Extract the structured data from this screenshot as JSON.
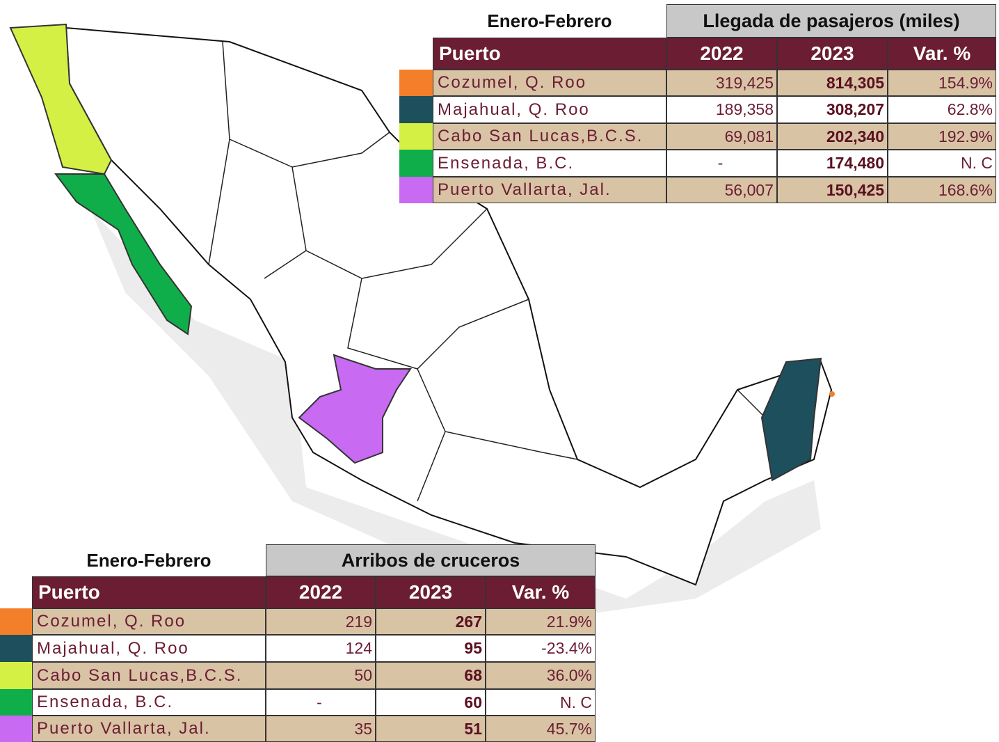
{
  "tables": [
    {
      "period": "Enero-Febrero",
      "title": "Llegada de pasajeros (miles)",
      "header": [
        "Puerto",
        "2022",
        "2023",
        "Var. %"
      ],
      "swatches": [
        "#f47f2a",
        "#1e4f5c",
        "#d4f045",
        "#10ae4a",
        "#c86af2"
      ],
      "rows": [
        [
          "Cozumel, Q. Roo",
          "319,425",
          "814,305",
          "154.9%"
        ],
        [
          "Majahual, Q. Roo",
          "189,358",
          "308,207",
          "62.8%"
        ],
        [
          "Cabo San Lucas,B.C.S.",
          "69,081",
          "202,340",
          "192.9%"
        ],
        [
          "Ensenada, B.C.",
          "-",
          "174,480",
          "N. C"
        ],
        [
          "Puerto Vallarta, Jal.",
          "56,007",
          "150,425",
          "168.6%"
        ]
      ]
    },
    {
      "period": "Enero-Febrero",
      "title": "Arribos de cruceros",
      "header": [
        "Puerto",
        "2022",
        "2023",
        "Var. %"
      ],
      "swatches": [
        "#f47f2a",
        "#1e4f5c",
        "#d4f045",
        "#10ae4a",
        "#c86af2"
      ],
      "rows": [
        [
          "Cozumel, Q. Roo",
          "219",
          "267",
          "21.9%"
        ],
        [
          "Majahual, Q. Roo",
          "124",
          "95",
          "-23.4%"
        ],
        [
          "Cabo San Lucas,B.C.S.",
          "50",
          "68",
          "36.0%"
        ],
        [
          "Ensenada, B.C.",
          "-",
          "60",
          "N. C"
        ],
        [
          "Puerto Vallarta, Jal.",
          "35",
          "51",
          "45.7%"
        ]
      ]
    }
  ]
}
